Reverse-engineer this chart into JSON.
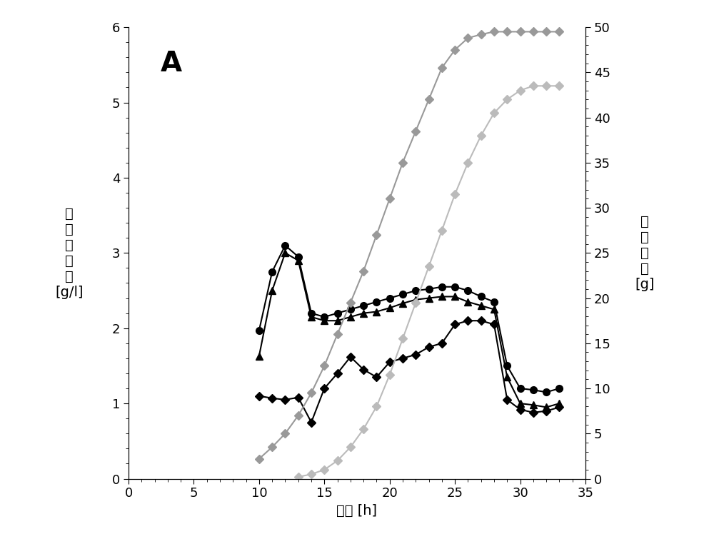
{
  "title_label": "A",
  "xlabel": "时间 [h]",
  "ylabel_left_chars": [
    "阿",
    "魏",
    "酸",
    "浓",
    "度",
    "[g/l]"
  ],
  "ylabel_right_chars": [
    "总",
    "阿",
    "魏",
    "酸",
    "[g]"
  ],
  "xlim": [
    0,
    35
  ],
  "ylim_left": [
    0,
    6
  ],
  "ylim_right": [
    0,
    50
  ],
  "xticks": [
    0,
    5,
    10,
    15,
    20,
    25,
    30,
    35
  ],
  "yticks_left": [
    0,
    1,
    2,
    3,
    4,
    5,
    6
  ],
  "yticks_right": [
    0,
    5,
    10,
    15,
    20,
    25,
    30,
    35,
    40,
    45,
    50
  ],
  "series": [
    {
      "name": "circle_black",
      "color": "#000000",
      "marker": "o",
      "markersize": 7,
      "linewidth": 1.5,
      "x": [
        10,
        11,
        12,
        13,
        14,
        15,
        16,
        17,
        18,
        19,
        20,
        21,
        22,
        23,
        24,
        25,
        26,
        27,
        28,
        29,
        30,
        31,
        32,
        33
      ],
      "y": [
        1.97,
        2.75,
        3.1,
        2.95,
        2.2,
        2.15,
        2.2,
        2.25,
        2.3,
        2.35,
        2.4,
        2.45,
        2.5,
        2.52,
        2.55,
        2.55,
        2.5,
        2.42,
        2.35,
        1.5,
        1.2,
        1.18,
        1.15,
        1.2
      ],
      "axis": "left"
    },
    {
      "name": "triangle_black",
      "color": "#000000",
      "marker": "^",
      "markersize": 7,
      "linewidth": 1.5,
      "x": [
        10,
        11,
        12,
        13,
        14,
        15,
        16,
        17,
        18,
        19,
        20,
        21,
        22,
        23,
        24,
        25,
        26,
        27,
        28,
        29,
        30,
        31,
        32,
        33
      ],
      "y": [
        1.63,
        2.5,
        3.0,
        2.9,
        2.15,
        2.1,
        2.1,
        2.15,
        2.2,
        2.22,
        2.27,
        2.33,
        2.38,
        2.4,
        2.42,
        2.42,
        2.35,
        2.3,
        2.25,
        1.35,
        1.0,
        0.98,
        0.95,
        1.0
      ],
      "axis": "left"
    },
    {
      "name": "diamond_black",
      "color": "#000000",
      "marker": "D",
      "markersize": 6,
      "linewidth": 1.5,
      "x": [
        10,
        11,
        12,
        13,
        14,
        15,
        16,
        17,
        18,
        19,
        20,
        21,
        22,
        23,
        24,
        25,
        26,
        27,
        28,
        29,
        30,
        31,
        32,
        33
      ],
      "y": [
        1.1,
        1.07,
        1.05,
        1.08,
        0.75,
        1.2,
        1.4,
        1.62,
        1.45,
        1.35,
        1.55,
        1.6,
        1.65,
        1.75,
        1.8,
        2.05,
        2.1,
        2.1,
        2.05,
        1.05,
        0.92,
        0.88,
        0.9,
        0.95
      ],
      "axis": "left"
    },
    {
      "name": "diamond_gray1",
      "color": "#999999",
      "marker": "D",
      "markersize": 6,
      "linewidth": 1.5,
      "x": [
        10,
        11,
        12,
        13,
        14,
        15,
        16,
        17,
        18,
        19,
        20,
        21,
        22,
        23,
        24,
        25,
        26,
        27,
        28,
        29,
        30,
        31,
        32,
        33
      ],
      "y_right": [
        2.2,
        3.5,
        5.0,
        7.0,
        9.5,
        12.5,
        16.0,
        19.5,
        23.0,
        27.0,
        31.0,
        35.0,
        38.5,
        42.0,
        45.5,
        47.5,
        48.8,
        49.2,
        49.5,
        49.5,
        49.5,
        49.5,
        49.5,
        49.5
      ],
      "axis": "right"
    },
    {
      "name": "diamond_gray2",
      "color": "#bbbbbb",
      "marker": "D",
      "markersize": 6,
      "linewidth": 1.5,
      "x": [
        13,
        14,
        15,
        16,
        17,
        18,
        19,
        20,
        21,
        22,
        23,
        24,
        25,
        26,
        27,
        28,
        29,
        30,
        31,
        32,
        33
      ],
      "y_right": [
        0.2,
        0.5,
        1.0,
        2.0,
        3.5,
        5.5,
        8.0,
        11.5,
        15.5,
        19.5,
        23.5,
        27.5,
        31.5,
        35.0,
        38.0,
        40.5,
        42.0,
        43.0,
        43.5,
        43.5,
        43.5
      ],
      "axis": "right"
    }
  ],
  "background_color": "#ffffff",
  "font_size_label": 14,
  "font_size_tick": 13,
  "font_size_title": 28,
  "font_size_ylabel": 14
}
